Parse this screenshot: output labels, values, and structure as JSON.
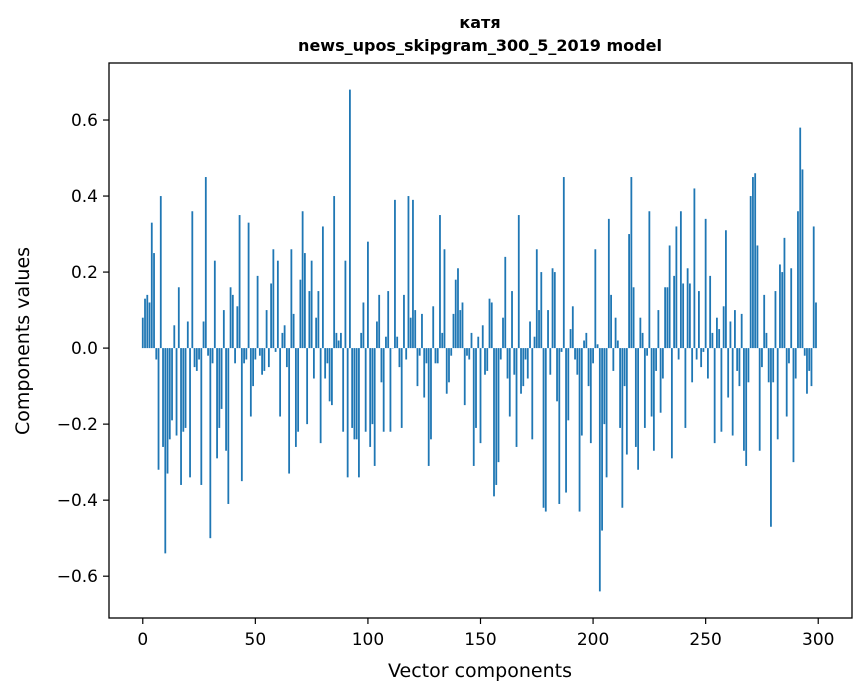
{
  "chart_data": {
    "type": "bar",
    "title": "катя",
    "subtitle": "news_upos_skipgram_300_5_2019 model",
    "xlabel": "Vector components",
    "ylabel": "Components values",
    "xlim": [
      -15,
      315
    ],
    "ylim": [
      -0.71,
      0.75
    ],
    "xticks": [
      0,
      50,
      100,
      150,
      200,
      250,
      300
    ],
    "xtick_labels": [
      "0",
      "50",
      "100",
      "150",
      "200",
      "250",
      "300"
    ],
    "yticks": [
      -0.6,
      -0.4,
      -0.2,
      0.0,
      0.2,
      0.4,
      0.6
    ],
    "ytick_labels": [
      "−0.6",
      "−0.4",
      "−0.2",
      "0.0",
      "0.2",
      "0.4",
      "0.6"
    ],
    "grid": false,
    "legend": "none",
    "bar_color": "#1f77b4",
    "series": [
      {
        "values": [
          0.08,
          0.13,
          0.14,
          0.12,
          0.33,
          0.25,
          -0.03,
          -0.32,
          0.4,
          -0.26,
          -0.54,
          -0.33,
          -0.24,
          -0.19,
          0.06,
          -0.23,
          0.16,
          -0.36,
          -0.22,
          -0.21,
          0.07,
          -0.34,
          0.36,
          -0.05,
          -0.06,
          -0.03,
          -0.36,
          0.07,
          0.45,
          -0.02,
          -0.5,
          -0.04,
          0.23,
          -0.29,
          -0.21,
          -0.16,
          0.1,
          -0.27,
          -0.41,
          0.16,
          0.14,
          -0.04,
          0.11,
          0.35,
          -0.35,
          -0.04,
          -0.03,
          0.33,
          -0.18,
          -0.1,
          -0.03,
          0.19,
          -0.02,
          -0.07,
          -0.06,
          0.1,
          -0.05,
          0.17,
          0.26,
          -0.01,
          0.23,
          -0.18,
          0.04,
          0.06,
          -0.05,
          -0.33,
          0.26,
          0.09,
          -0.26,
          -0.22,
          0.18,
          0.36,
          0.25,
          -0.2,
          0.15,
          0.23,
          -0.08,
          0.08,
          0.15,
          -0.25,
          0.32,
          -0.08,
          -0.04,
          -0.14,
          -0.15,
          0.4,
          0.04,
          0.02,
          0.04,
          -0.22,
          0.23,
          -0.34,
          0.68,
          -0.21,
          -0.24,
          -0.24,
          -0.34,
          0.04,
          0.12,
          -0.22,
          0.28,
          -0.26,
          -0.2,
          -0.31,
          0.07,
          0.14,
          -0.09,
          -0.22,
          0.03,
          0.15,
          -0.22,
          0.0,
          0.39,
          0.03,
          -0.05,
          -0.21,
          0.14,
          -0.03,
          0.4,
          0.08,
          0.39,
          0.1,
          -0.1,
          -0.02,
          0.09,
          -0.13,
          -0.04,
          -0.31,
          -0.24,
          0.11,
          -0.04,
          -0.04,
          0.35,
          0.04,
          0.26,
          -0.12,
          -0.09,
          -0.02,
          0.09,
          0.18,
          0.21,
          0.1,
          0.12,
          -0.15,
          -0.02,
          -0.03,
          0.04,
          -0.31,
          -0.21,
          0.03,
          -0.25,
          0.06,
          -0.07,
          -0.06,
          0.13,
          0.12,
          -0.39,
          -0.36,
          -0.3,
          -0.03,
          0.08,
          0.24,
          -0.08,
          -0.18,
          0.15,
          -0.07,
          -0.26,
          0.35,
          -0.12,
          -0.1,
          -0.03,
          -0.08,
          0.07,
          -0.24,
          0.03,
          0.26,
          0.1,
          0.2,
          -0.42,
          -0.43,
          0.1,
          -0.07,
          0.21,
          0.2,
          -0.14,
          -0.41,
          -0.01,
          0.45,
          -0.38,
          -0.19,
          0.05,
          0.11,
          -0.03,
          -0.07,
          -0.43,
          -0.23,
          0.02,
          0.04,
          -0.1,
          -0.25,
          -0.04,
          0.26,
          0.01,
          -0.64,
          -0.48,
          -0.2,
          -0.34,
          0.34,
          0.14,
          -0.06,
          0.08,
          0.02,
          -0.21,
          -0.42,
          -0.1,
          -0.28,
          0.3,
          0.45,
          0.16,
          -0.26,
          -0.32,
          0.08,
          0.04,
          -0.21,
          -0.02,
          0.36,
          -0.18,
          -0.27,
          -0.06,
          0.1,
          -0.17,
          -0.08,
          0.16,
          0.16,
          0.27,
          -0.29,
          0.19,
          0.32,
          -0.03,
          0.36,
          0.17,
          -0.21,
          0.21,
          0.17,
          -0.09,
          0.42,
          -0.03,
          0.15,
          -0.05,
          -0.01,
          0.34,
          -0.08,
          0.19,
          0.04,
          -0.25,
          0.08,
          0.05,
          -0.22,
          0.11,
          0.31,
          -0.13,
          0.07,
          -0.23,
          0.1,
          -0.06,
          -0.1,
          0.09,
          -0.27,
          -0.31,
          -0.09,
          0.4,
          0.45,
          0.46,
          0.27,
          -0.27,
          -0.05,
          0.14,
          0.04,
          -0.09,
          -0.47,
          -0.09,
          0.15,
          -0.24,
          0.22,
          0.2,
          0.29,
          -0.18,
          -0.04,
          0.21,
          -0.3,
          -0.08,
          0.36,
          0.58,
          0.47,
          -0.02,
          -0.12,
          -0.06,
          -0.1,
          0.32,
          0.12
        ]
      }
    ]
  }
}
